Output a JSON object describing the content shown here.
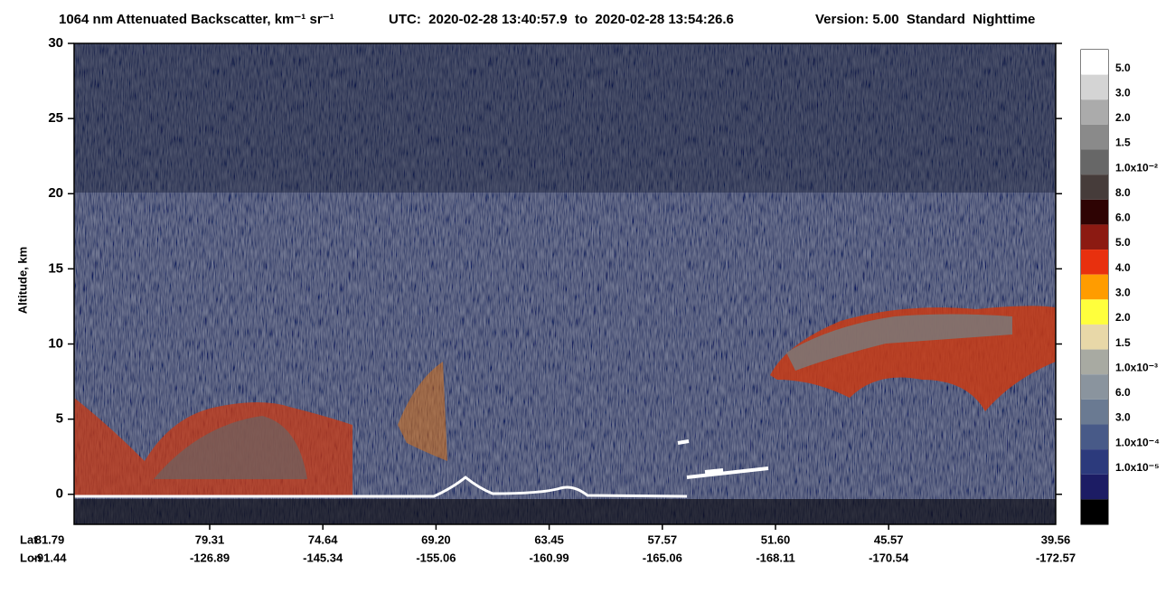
{
  "chart_data": {
    "type": "heatmap",
    "title": "1064 nm Attenuated Backscatter, km⁻¹ sr⁻¹",
    "time_range": "UTC:  2020-02-28 13:40:57.9  to  2020-02-28 13:54:26.6",
    "version": "Version: 5.00  Standard  Nighttime",
    "ylabel": "Altitude, km",
    "ylim": [
      -2,
      30
    ],
    "yticks": [
      0,
      5,
      10,
      15,
      20,
      25,
      30
    ],
    "x_rows": [
      {
        "name": "Lat",
        "values": [
          "81.79",
          "79.31",
          "74.64",
          "69.20",
          "63.45",
          "57.57",
          "51.60",
          "45.57",
          "39.56"
        ]
      },
      {
        "name": "Lon",
        "values": [
          "-91.44",
          "-126.89",
          "-145.34",
          "-155.06",
          "-160.99",
          "-165.06",
          "-168.11",
          "-170.54",
          "-172.57"
        ]
      }
    ],
    "colorbar": {
      "colors": [
        "#ffffff",
        "#d4d4d4",
        "#ababab",
        "#8a8a8a",
        "#676767",
        "#463c3a",
        "#2e0303",
        "#8c1a12",
        "#e8300e",
        "#ff9c00",
        "#ffff3c",
        "#e8d8a8",
        "#a8aaa2",
        "#8a949e",
        "#6a7a92",
        "#485a88",
        "#2c3a7c",
        "#1c1c64",
        "#000000"
      ],
      "labels": [
        "5.0",
        "3.0",
        "2.0",
        "1.5",
        "1.0x10⁻²",
        "8.0",
        "6.0",
        "5.0",
        "4.0",
        "3.0",
        "2.0",
        "1.5",
        "1.0x10⁻³",
        "6.0",
        "3.0",
        "1.0x10⁻⁴",
        "1.0x10⁻⁵"
      ]
    }
  }
}
